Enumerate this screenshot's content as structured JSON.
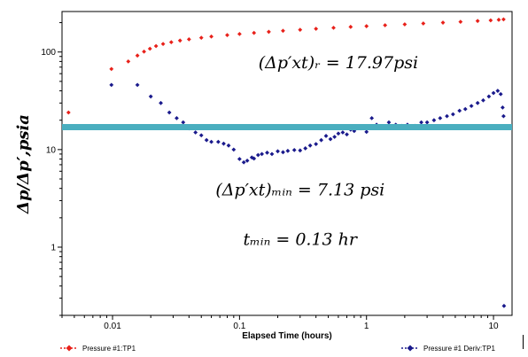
{
  "chart_data": {
    "type": "scatter",
    "xlabel": "Elapsed Time (hours)",
    "ylabel": "Δp/Δp′,psia",
    "x_scale": "log",
    "y_scale": "log",
    "xlim": [
      0.004,
      14
    ],
    "ylim": [
      0.2,
      260
    ],
    "x_ticks": [
      0.01,
      0.1,
      1,
      10
    ],
    "x_tick_labels": [
      "0.01",
      "0.1",
      "1",
      "10"
    ],
    "y_ticks": [
      1,
      10,
      100
    ],
    "y_tick_labels": [
      "1",
      "10",
      "100"
    ],
    "grid": false,
    "legend": "bottom",
    "horizontal_line": {
      "y": 17.0,
      "color": "#4aaebf"
    },
    "annotations": [
      {
        "text": "(Δp′xt)ᵣ = 17.97psi",
        "x": 0.6,
        "y": 68
      },
      {
        "text": "(Δp′xt)ₘᵢₙ = 7.13 psi",
        "x": 0.3,
        "y": 3.4
      },
      {
        "text": "tₘᵢₙ = 0.13 hr",
        "x": 0.3,
        "y": 1.05
      }
    ],
    "series": [
      {
        "name": "Pressure #1:TP1",
        "color": "#e8211a",
        "marker": "diamond",
        "x": [
          0.0045,
          0.0098,
          0.0133,
          0.0157,
          0.0177,
          0.0197,
          0.022,
          0.025,
          0.029,
          0.034,
          0.04,
          0.05,
          0.06,
          0.08,
          0.1,
          0.13,
          0.17,
          0.22,
          0.3,
          0.4,
          0.55,
          0.75,
          1.0,
          1.4,
          2.0,
          2.8,
          4.0,
          5.5,
          7.5,
          9.5,
          11.0,
          12.0
        ],
        "y": [
          24,
          67,
          80,
          92,
          101,
          108,
          115,
          121,
          126,
          131,
          135,
          140,
          144,
          149,
          153,
          157,
          161,
          165,
          169,
          173,
          177,
          181,
          184,
          188,
          192,
          196,
          200,
          204,
          208,
          211,
          214,
          216
        ]
      },
      {
        "name": "Pressure #1 Deriv:TP1",
        "color": "#1a1a8c",
        "marker": "diamond",
        "x": [
          0.0098,
          0.0157,
          0.02,
          0.024,
          0.028,
          0.032,
          0.036,
          0.04,
          0.045,
          0.05,
          0.055,
          0.06,
          0.068,
          0.075,
          0.082,
          0.09,
          0.1,
          0.108,
          0.115,
          0.125,
          0.13,
          0.14,
          0.15,
          0.165,
          0.18,
          0.2,
          0.22,
          0.24,
          0.27,
          0.3,
          0.33,
          0.36,
          0.4,
          0.44,
          0.48,
          0.52,
          0.56,
          0.6,
          0.65,
          0.7,
          0.75,
          0.8,
          0.9,
          1.0,
          1.1,
          1.2,
          1.35,
          1.5,
          1.7,
          1.9,
          2.1,
          2.4,
          2.7,
          3.0,
          3.4,
          3.8,
          4.3,
          4.8,
          5.4,
          6.0,
          6.7,
          7.5,
          8.3,
          9.2,
          10.0,
          10.8,
          11.4,
          11.8,
          12.0,
          12.1
        ],
        "y": [
          46,
          46,
          35,
          30,
          24,
          21,
          19,
          16.5,
          15,
          14,
          12.5,
          12,
          12,
          11.5,
          11,
          10,
          8,
          7.4,
          7.7,
          8.3,
          8.1,
          8.8,
          9.0,
          9.3,
          9.0,
          9.6,
          9.4,
          9.7,
          9.9,
          9.8,
          10.3,
          11.0,
          11.4,
          12.5,
          13.8,
          12.8,
          13.5,
          14.6,
          15.0,
          14.3,
          16.0,
          15.5,
          16.5,
          15.2,
          21,
          18,
          17,
          19,
          18,
          17.5,
          18,
          17.5,
          19,
          19,
          20,
          21,
          22,
          23,
          25,
          26,
          28,
          30,
          32,
          35,
          38,
          40,
          37,
          27,
          22,
          0.25
        ]
      }
    ]
  }
}
